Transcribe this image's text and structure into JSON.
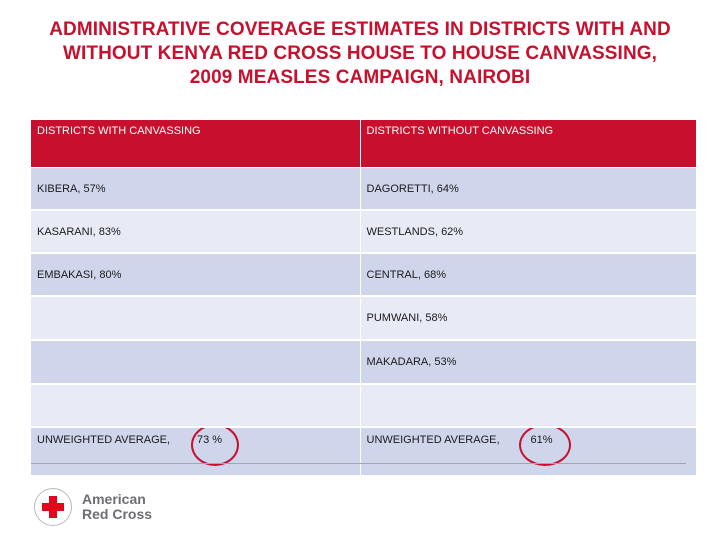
{
  "title": {
    "line1": "ADMINISTRATIVE COVERAGE ESTIMATES IN DISTRICTS WITH AND",
    "line2": "WITHOUT KENYA RED CROSS HOUSE TO HOUSE CANVASSING,",
    "line3": "2009 MEASLES CAMPAIGN, NAIROBI"
  },
  "table": {
    "headers": [
      "DISTRICTS WITH CANVASSING",
      "DISTRICTS WITHOUT CANVASSING"
    ],
    "rows": [
      [
        "KIBERA, 57%",
        "DAGORETTI, 64%"
      ],
      [
        "KASARANI, 83%",
        "WESTLANDS, 62%"
      ],
      [
        "EMBAKASI, 80%",
        "CENTRAL, 68%"
      ],
      [
        "",
        "PUMWANI,  58%"
      ],
      [
        "",
        "MAKADARA, 53%"
      ],
      [
        "",
        ""
      ]
    ],
    "average": {
      "label_left": "UNWEIGHTED AVERAGE,",
      "value_left": "73 %",
      "label_right": "UNWEIGHTED AVERAGE,",
      "value_right": "61%"
    }
  },
  "logo": {
    "line1": "American",
    "line2": "Red Cross"
  },
  "colors": {
    "brand_red": "#c8102e",
    "row_dark": "#cfd5ea",
    "row_light": "#e8ebf5"
  }
}
